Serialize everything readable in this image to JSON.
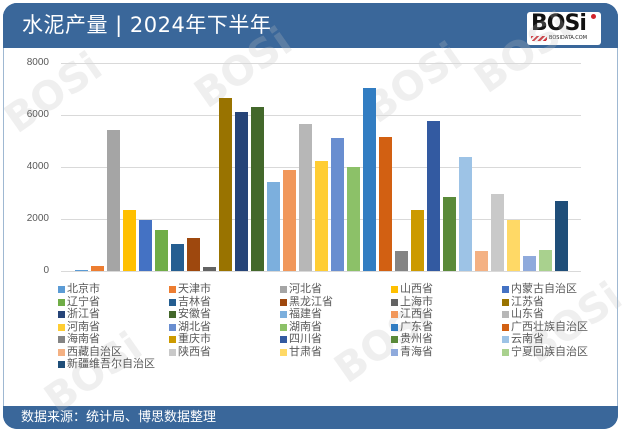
{
  "header": {
    "title": "水泥产量 | 2024年下半年",
    "logo_text": "BOSi",
    "logo_sub": "BOSIDATA.COM"
  },
  "footer": {
    "source": "数据来源：统计局、博思数据整理"
  },
  "colors": {
    "header_bg": "#3a679a",
    "grid": "#d9d9d9",
    "axis_text": "#595959"
  },
  "watermark": "BOSi",
  "chart_data": {
    "type": "bar",
    "title": "水泥产量 | 2024年下半年",
    "xlabel": "",
    "ylabel": "",
    "ylim": [
      0,
      8000
    ],
    "yticks": [
      0,
      2000,
      4000,
      6000,
      8000
    ],
    "grid": true,
    "legend_position": "bottom",
    "categories": [
      "北京市",
      "天津市",
      "河北省",
      "山西省",
      "内蒙古自治区",
      "辽宁省",
      "吉林省",
      "黑龙江省",
      "上海市",
      "江苏省",
      "浙江省",
      "安徽省",
      "福建省",
      "江西省",
      "山东省",
      "河南省",
      "湖北省",
      "湖南省",
      "广东省",
      "广西壮族自治区",
      "海南省",
      "重庆市",
      "四川省",
      "贵州省",
      "云南省",
      "西藏自治区",
      "陕西省",
      "甘肃省",
      "青海省",
      "宁夏回族自治区",
      "新疆维吾尔自治区"
    ],
    "values": [
      40,
      200,
      5420,
      2360,
      1975,
      1590,
      1040,
      1280,
      165,
      6650,
      6115,
      6310,
      3420,
      3895,
      5665,
      4240,
      5115,
      4000,
      7045,
      5155,
      770,
      2345,
      5770,
      2845,
      4385,
      780,
      2975,
      1950,
      580,
      820,
      2690
    ],
    "bar_colors": [
      "#5b9bd5",
      "#ed7d31",
      "#a5a5a5",
      "#ffc000",
      "#4472c4",
      "#70ad47",
      "#255e91",
      "#9e480e",
      "#636363",
      "#997300",
      "#264478",
      "#43682b",
      "#7cafdd",
      "#f1975a",
      "#b7b7b7",
      "#ffcd33",
      "#698ed0",
      "#8cc168",
      "#327dc2",
      "#d26012",
      "#848484",
      "#cc9a00",
      "#335aa1",
      "#5a8a39",
      "#9dc3e6",
      "#f4b183",
      "#c9c9c9",
      "#ffd966",
      "#8faadc",
      "#a9d18e",
      "#1f4e79"
    ]
  }
}
